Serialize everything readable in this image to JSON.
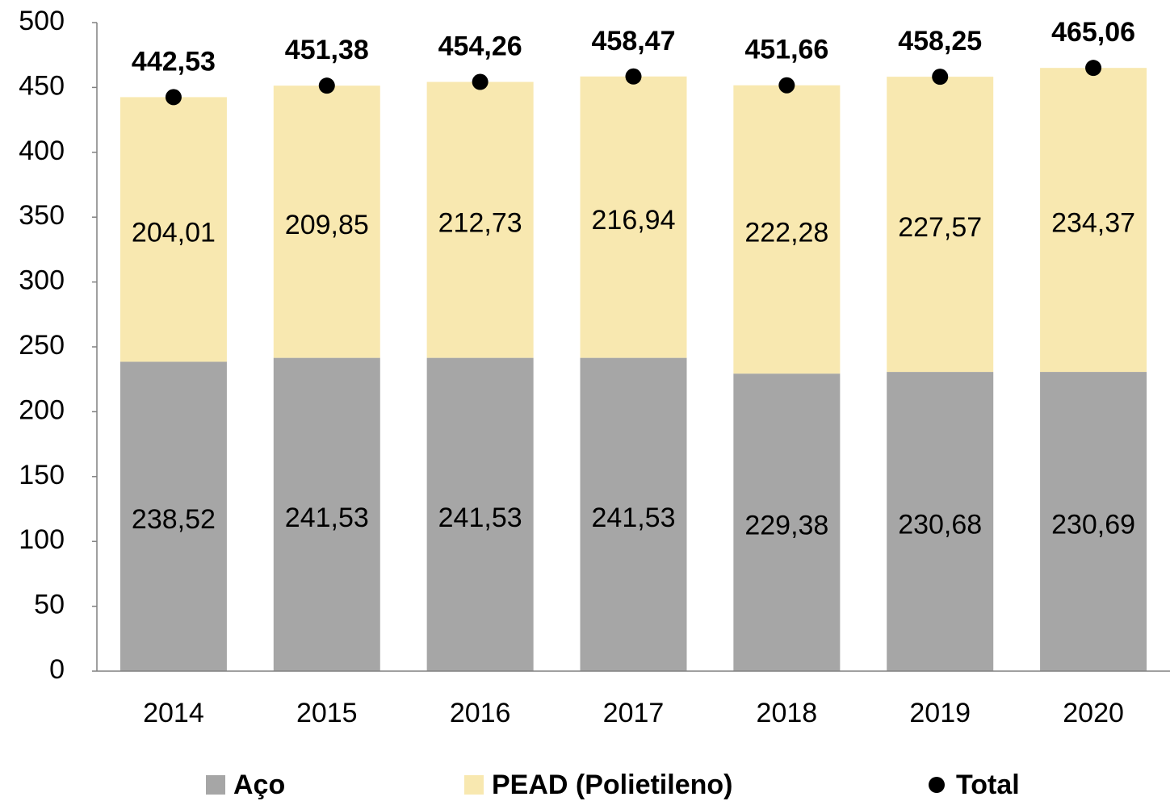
{
  "chart_data": {
    "type": "bar",
    "stacked": true,
    "categories": [
      "2014",
      "2015",
      "2016",
      "2017",
      "2018",
      "2019",
      "2020"
    ],
    "series": [
      {
        "name": "Aço",
        "color": "#a6a6a6",
        "values": [
          238.52,
          241.53,
          241.53,
          241.53,
          229.38,
          230.68,
          230.69
        ],
        "value_labels": [
          "238,52",
          "241,53",
          "241,53",
          "241,53",
          "229,38",
          "230,68",
          "230,69"
        ]
      },
      {
        "name": "PEAD (Polietileno)",
        "color": "#f8e8b0",
        "values": [
          204.01,
          209.85,
          212.73,
          216.94,
          222.28,
          227.57,
          234.37
        ],
        "value_labels": [
          "204,01",
          "209,85",
          "212,73",
          "216,94",
          "222,28",
          "227,57",
          "234,37"
        ]
      },
      {
        "name": "Total",
        "type": "dot",
        "color": "#000000",
        "values": [
          442.53,
          451.38,
          454.26,
          458.47,
          451.66,
          458.25,
          465.06
        ],
        "value_labels": [
          "442,53",
          "451,38",
          "454,26",
          "458,47",
          "451,66",
          "458,25",
          "465,06"
        ]
      }
    ],
    "ylim": [
      0,
      500
    ],
    "yticks": [
      0,
      50,
      100,
      150,
      200,
      250,
      300,
      350,
      400,
      450,
      500
    ],
    "grid": false
  }
}
